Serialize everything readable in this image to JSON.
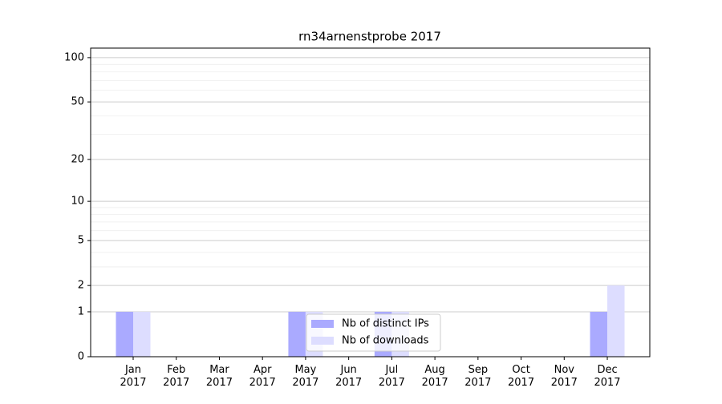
{
  "chart_data": {
    "type": "bar",
    "title": "rn34arnenstprobe 2017",
    "categories": [
      "Jan 2017",
      "Feb 2017",
      "Mar 2017",
      "Apr 2017",
      "May 2017",
      "Jun 2017",
      "Jul 2017",
      "Aug 2017",
      "Sep 2017",
      "Oct 2017",
      "Nov 2017",
      "Dec 2017"
    ],
    "series": [
      {
        "name": "Nb of distinct IPs",
        "color": "#aaaaff",
        "values": [
          1,
          0,
          0,
          0,
          1,
          0,
          1,
          0,
          0,
          0,
          0,
          1
        ]
      },
      {
        "name": "Nb of downloads",
        "color": "#ddddff",
        "values": [
          1,
          0,
          0,
          0,
          1,
          0,
          1,
          0,
          0,
          0,
          0,
          2
        ]
      }
    ],
    "yscale": "log1p",
    "ylim": [
      0,
      116
    ],
    "yticks": [
      0,
      1,
      2,
      5,
      10,
      20,
      50,
      100
    ],
    "yminor_ticks": [
      3,
      4,
      6,
      7,
      8,
      9,
      30,
      40,
      60,
      70,
      80,
      90
    ],
    "grid": true,
    "legend": "lower center"
  }
}
